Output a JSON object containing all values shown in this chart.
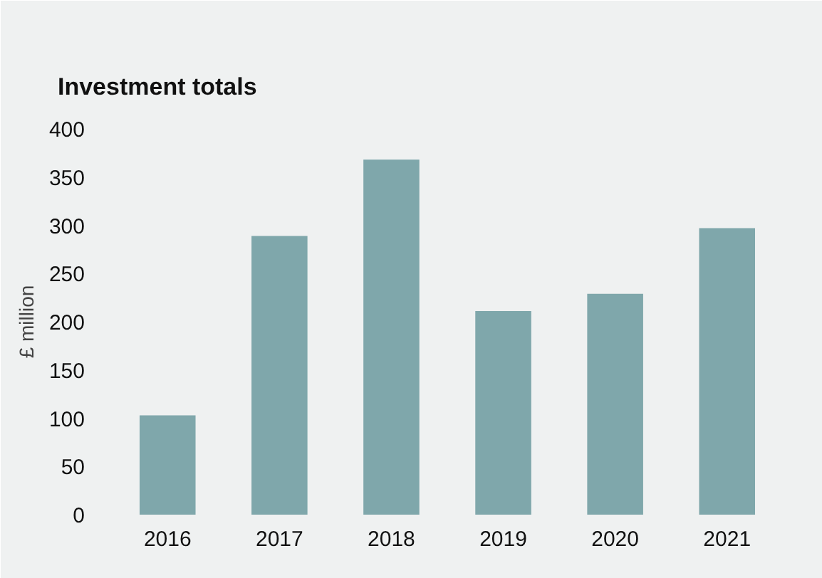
{
  "chart_data": {
    "type": "bar",
    "title": "Investment totals",
    "ylabel": "£ million",
    "categories": [
      "2016",
      "2017",
      "2018",
      "2019",
      "2020",
      "2021"
    ],
    "values": [
      103,
      289,
      368,
      211,
      229,
      297
    ],
    "color": "#7fa7ab",
    "ylim": [
      0,
      400
    ],
    "yticks": [
      0,
      50,
      100,
      150,
      200,
      250,
      300,
      350,
      400
    ],
    "grid": false
  }
}
